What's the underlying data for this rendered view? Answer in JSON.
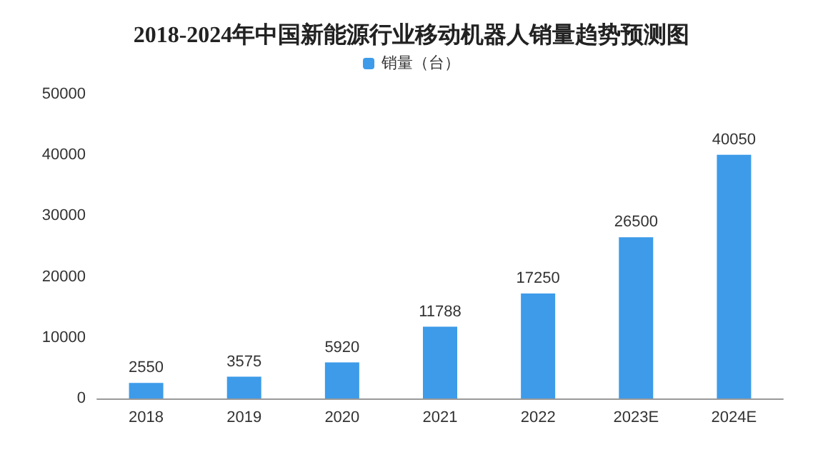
{
  "chart_data": {
    "type": "bar",
    "title": "2018-2024年中国新能源行业移动机器人销量趋势预测图",
    "categories": [
      "2018",
      "2019",
      "2020",
      "2021",
      "2022",
      "2023E",
      "2024E"
    ],
    "series": [
      {
        "name": "销量（台）",
        "color": "#3d9be9",
        "values": [
          2550,
          3575,
          5920,
          11788,
          17250,
          26500,
          40050
        ]
      }
    ],
    "ylim": [
      0,
      50000
    ],
    "yticks": [
      0,
      10000,
      20000,
      30000,
      40000,
      50000
    ],
    "grid": false,
    "legend": "top",
    "data_labels": true
  }
}
